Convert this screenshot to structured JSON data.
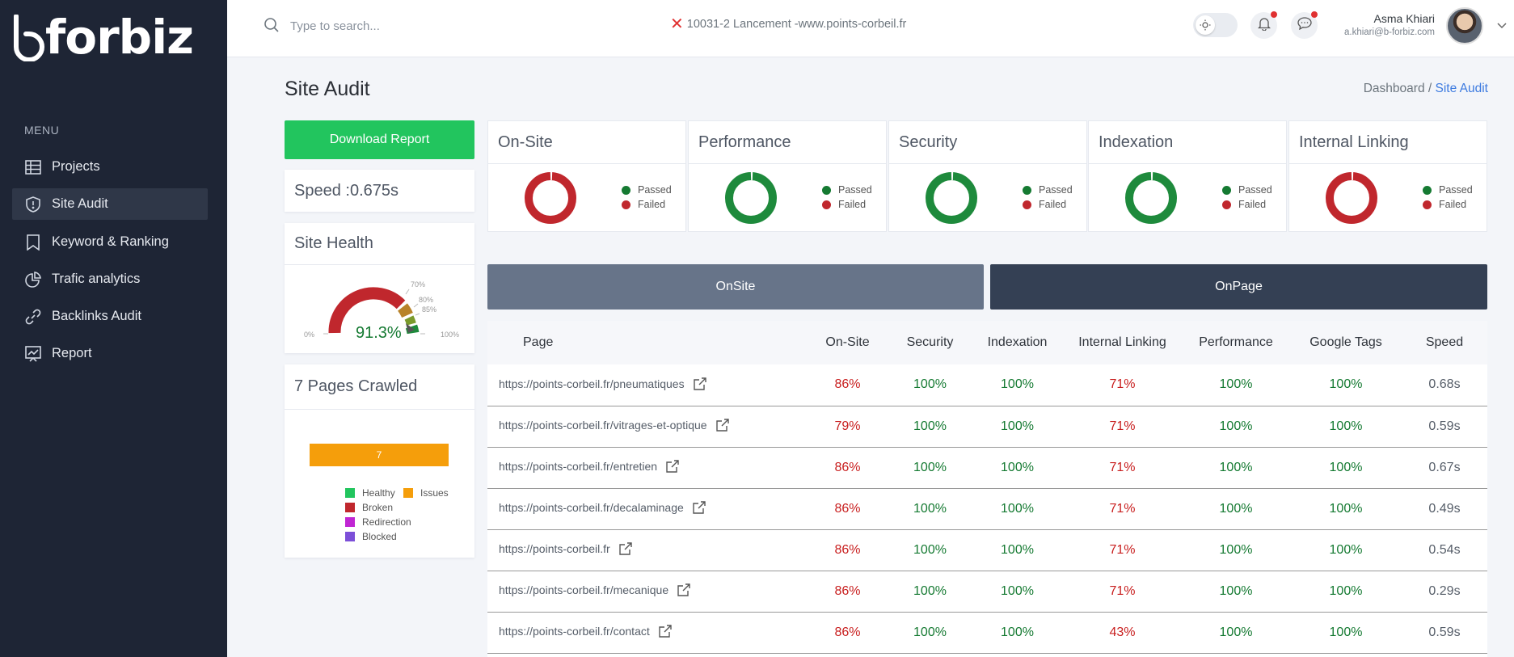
{
  "brand": {
    "name": "forbiz"
  },
  "sidebar": {
    "menu_title": "MENU",
    "items": [
      {
        "label": "Projects",
        "icon": "grid-icon"
      },
      {
        "label": "Site Audit",
        "icon": "shield-icon"
      },
      {
        "label": "Keyword & Ranking",
        "icon": "bookmark-icon"
      },
      {
        "label": "Trafic analytics",
        "icon": "pie-chart-icon"
      },
      {
        "label": "Backlinks Audit",
        "icon": "link-icon"
      },
      {
        "label": "Report",
        "icon": "report-chart-icon"
      }
    ]
  },
  "topbar": {
    "search_placeholder": "Type to search...",
    "project": "10031-2 Lancement -www.points-corbeil.fr",
    "user_name": "Asma Khiari",
    "user_email": "a.khiari@b-forbiz.com"
  },
  "page": {
    "title": "Site Audit",
    "breadcrumb_root": "Dashboard",
    "breadcrumb_sep": "/",
    "breadcrumb_current": "Site Audit"
  },
  "left": {
    "download_label": "Download Report",
    "speed": "Speed :0.675s",
    "health_title": "Site Health",
    "health_value": "91.3%",
    "gauge_labels": {
      "min": "0%",
      "max": "100%",
      "l70": "70%",
      "l80": "80%",
      "l85": "85%"
    },
    "crawled_title": "7 Pages Crawled",
    "crawled_bar_value": "7",
    "crawled_legend": [
      "Healthy",
      "Issues",
      "Broken",
      "Redirection",
      "Blocked"
    ]
  },
  "score_cards": [
    {
      "title": "On-Site",
      "passed": "Passed",
      "failed": "Failed",
      "ring": "red"
    },
    {
      "title": "Performance",
      "passed": "Passed",
      "failed": "Failed",
      "ring": "green"
    },
    {
      "title": "Security",
      "passed": "Passed",
      "failed": "Failed",
      "ring": "green"
    },
    {
      "title": "Indexation",
      "passed": "Passed",
      "failed": "Failed",
      "ring": "green"
    },
    {
      "title": "Internal Linking",
      "passed": "Passed",
      "failed": "Failed",
      "ring": "red"
    }
  ],
  "tabs": {
    "onsite": "OnSite",
    "onpage": "OnPage"
  },
  "table": {
    "headers": [
      "Page",
      "On-Site",
      "Security",
      "Indexation",
      "Internal Linking",
      "Performance",
      "Google Tags",
      "Speed"
    ],
    "rows": [
      [
        "https://points-corbeil.fr/pneumatiques",
        "86%",
        "100%",
        "100%",
        "71%",
        "100%",
        "100%",
        "0.68s"
      ],
      [
        "https://points-corbeil.fr/vitrages-et-optique",
        "79%",
        "100%",
        "100%",
        "71%",
        "100%",
        "100%",
        "0.59s"
      ],
      [
        "https://points-corbeil.fr/entretien",
        "86%",
        "100%",
        "100%",
        "71%",
        "100%",
        "100%",
        "0.67s"
      ],
      [
        "https://points-corbeil.fr/decalaminage",
        "86%",
        "100%",
        "100%",
        "71%",
        "100%",
        "100%",
        "0.49s"
      ],
      [
        "https://points-corbeil.fr",
        "86%",
        "100%",
        "100%",
        "71%",
        "100%",
        "100%",
        "0.54s"
      ],
      [
        "https://points-corbeil.fr/mecanique",
        "86%",
        "100%",
        "100%",
        "71%",
        "100%",
        "100%",
        "0.29s"
      ],
      [
        "https://points-corbeil.fr/contact",
        "86%",
        "100%",
        "100%",
        "43%",
        "100%",
        "100%",
        "0.59s"
      ]
    ]
  },
  "colors": {
    "green": "#157a32",
    "red": "#c81e1e",
    "accent": "#22c55e",
    "sidebar": "#1e2535",
    "orange": "#f59e0b"
  }
}
